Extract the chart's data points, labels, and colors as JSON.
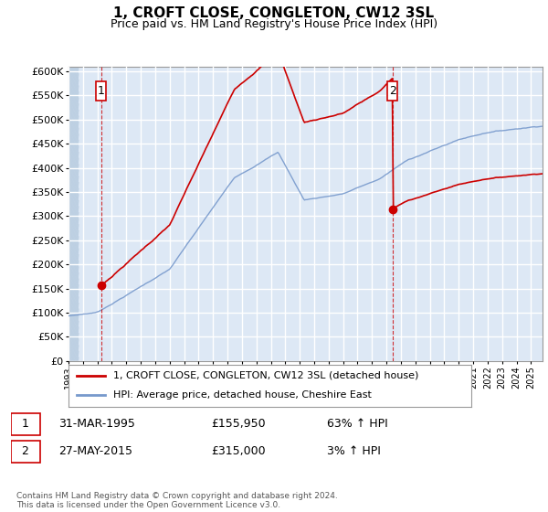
{
  "title": "1, CROFT CLOSE, CONGLETON, CW12 3SL",
  "subtitle": "Price paid vs. HM Land Registry's House Price Index (HPI)",
  "ylabel_ticks": [
    "£0",
    "£50K",
    "£100K",
    "£150K",
    "£200K",
    "£250K",
    "£300K",
    "£350K",
    "£400K",
    "£450K",
    "£500K",
    "£550K",
    "£600K"
  ],
  "ytick_values": [
    0,
    50000,
    100000,
    150000,
    200000,
    250000,
    300000,
    350000,
    400000,
    450000,
    500000,
    550000,
    600000
  ],
  "ylim": [
    0,
    610000
  ],
  "xlim_start": 1993.0,
  "xlim_end": 2025.8,
  "purchase1_x": 1995.25,
  "purchase1_y": 155950,
  "purchase2_x": 2015.42,
  "purchase2_y": 315000,
  "line1_color": "#cc0000",
  "line2_color": "#7799cc",
  "bg_color": "#dde8f5",
  "grid_color": "#ffffff",
  "hatch_end": 1993.7,
  "legend_label1": "1, CROFT CLOSE, CONGLETON, CW12 3SL (detached house)",
  "legend_label2": "HPI: Average price, detached house, Cheshire East",
  "purchase1_date": "31-MAR-1995",
  "purchase1_price": "£155,950",
  "purchase1_hpi": "63% ↑ HPI",
  "purchase2_date": "27-MAY-2015",
  "purchase2_price": "£315,000",
  "purchase2_hpi": "3% ↑ HPI",
  "footer": "Contains HM Land Registry data © Crown copyright and database right 2024.\nThis data is licensed under the Open Government Licence v3.0.",
  "xticks": [
    1993,
    1994,
    1995,
    1996,
    1997,
    1998,
    1999,
    2000,
    2001,
    2002,
    2003,
    2004,
    2005,
    2006,
    2007,
    2008,
    2009,
    2010,
    2011,
    2012,
    2013,
    2014,
    2015,
    2016,
    2017,
    2018,
    2019,
    2020,
    2021,
    2022,
    2023,
    2024,
    2025
  ]
}
